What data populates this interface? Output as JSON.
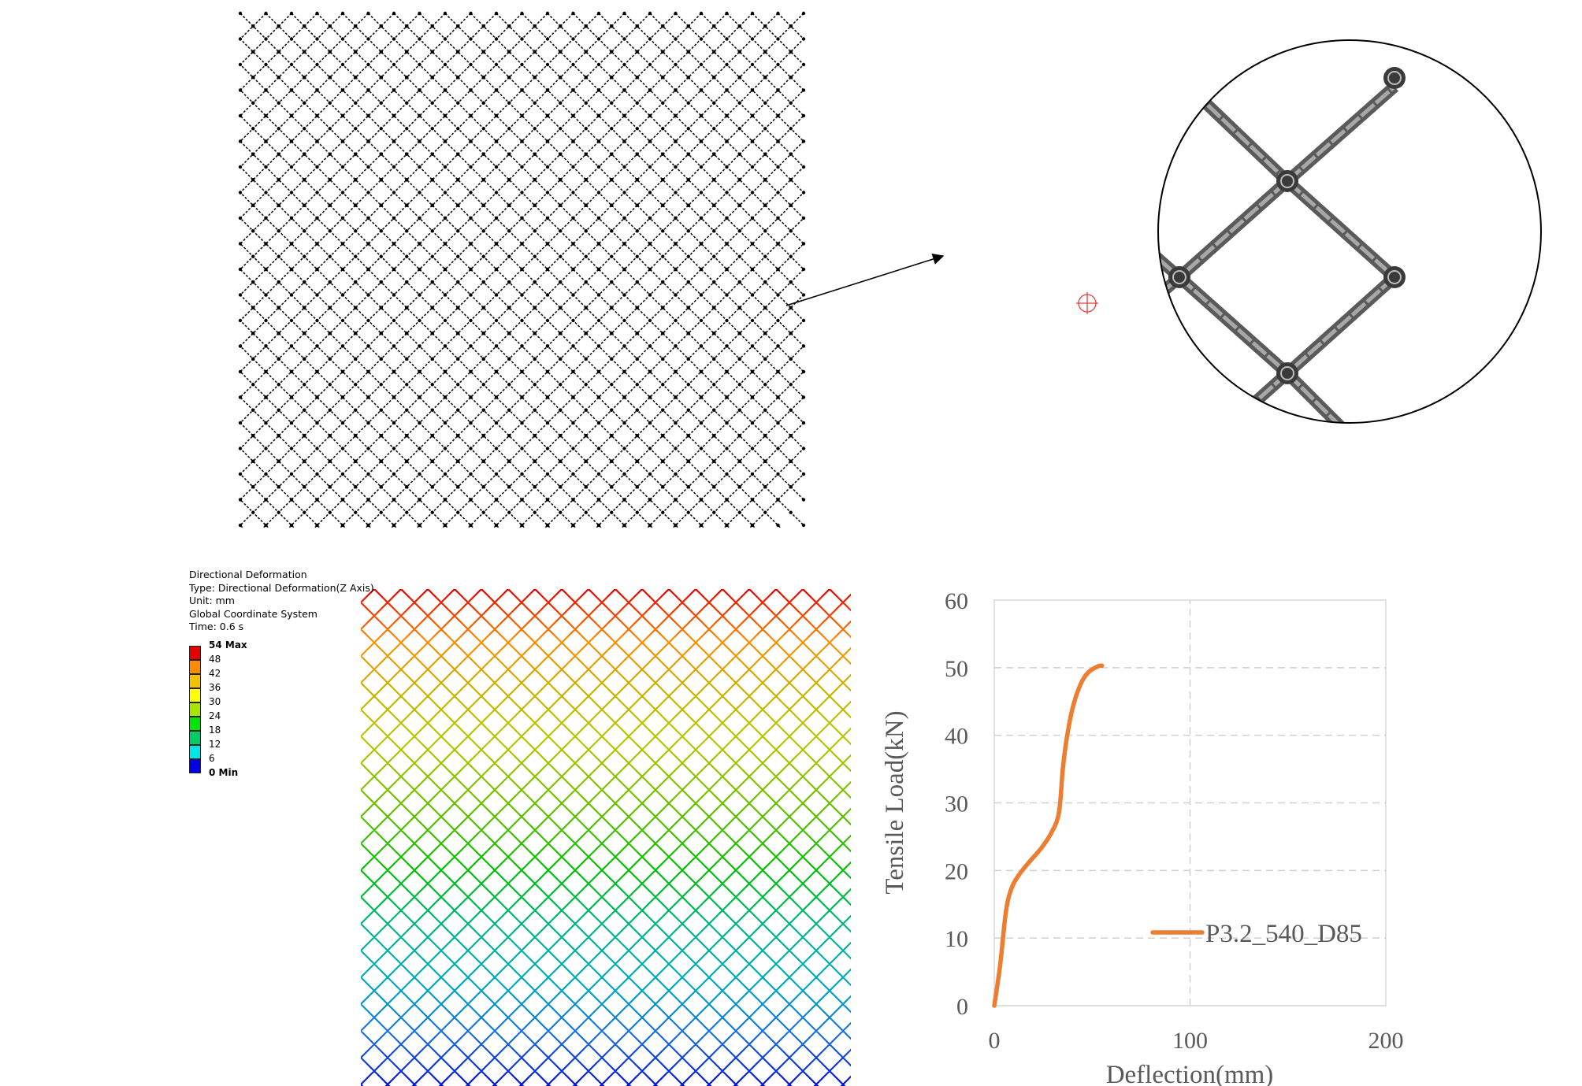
{
  "panels": {
    "mesh_top": {
      "name": "undeformed-wire-mesh"
    },
    "magnifier": {
      "name": "magnified-mesh-detail"
    }
  },
  "contour": {
    "title_lines": [
      "Directional Deformation",
      "Type: Directional Deformation(Z Axis)",
      "Unit: mm",
      "Global Coordinate System",
      "Time: 0.6 s"
    ],
    "scale": [
      {
        "label": "54 Max",
        "color": "#e60000",
        "bold": true
      },
      {
        "label": "48",
        "color": "#ff8c00",
        "bold": false
      },
      {
        "label": "42",
        "color": "#f2c200",
        "bold": false
      },
      {
        "label": "36",
        "color": "#ffff00",
        "bold": false
      },
      {
        "label": "30",
        "color": "#a6e600",
        "bold": false
      },
      {
        "label": "24",
        "color": "#00e600",
        "bold": false
      },
      {
        "label": "18",
        "color": "#00cc66",
        "bold": false
      },
      {
        "label": "12",
        "color": "#00e6e6",
        "bold": false
      },
      {
        "label": "6",
        "color": "#1a8cff",
        "bold": false
      },
      {
        "label": "0 Min",
        "color": "#0000e6",
        "bold": true
      }
    ]
  },
  "chart_data": {
    "type": "line",
    "title": "",
    "xlabel": "Deflection(mm)",
    "ylabel": "Tensile Load(kN)",
    "xlim": [
      0,
      200
    ],
    "ylim": [
      0,
      60
    ],
    "xticks": [
      "0",
      "100",
      "200"
    ],
    "yticks": [
      "0",
      "10",
      "20",
      "30",
      "40",
      "50",
      "60"
    ],
    "grid": true,
    "legend_position": "right",
    "series": [
      {
        "name": "P3.2_540_D85",
        "color": "#ed7d31",
        "x": [
          0,
          3,
          6,
          9,
          13,
          18,
          24,
          29,
          33,
          35,
          37,
          40,
          44,
          48,
          53,
          55
        ],
        "y": [
          0,
          6,
          14,
          17.5,
          19.5,
          21.3,
          23.3,
          25.5,
          28.5,
          35,
          39.5,
          44,
          47.5,
          49.3,
          50.2,
          50.3
        ]
      }
    ]
  }
}
